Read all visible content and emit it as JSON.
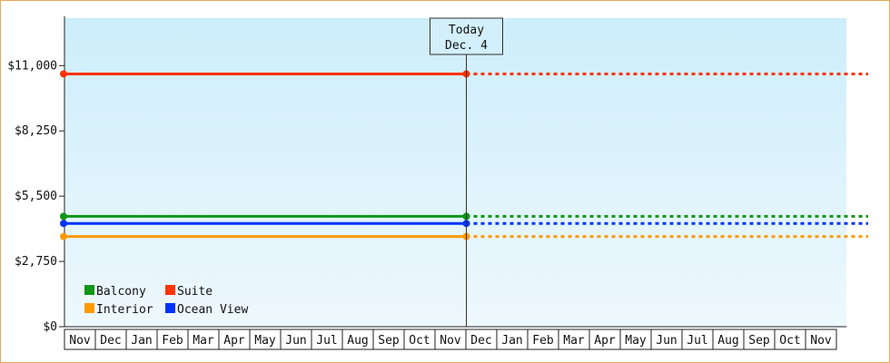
{
  "chart_data": {
    "type": "line",
    "today_marker": {
      "line1": "Today",
      "line2": "Dec. 4"
    },
    "y_ticks": [
      "$0",
      "$2,750",
      "$5,500",
      "$8,250",
      "$11,000"
    ],
    "ylim": [
      0,
      13000
    ],
    "tick_values": [
      0,
      2750,
      5500,
      8250,
      11000
    ],
    "x_categories": [
      "Nov",
      "Dec",
      "Jan",
      "Feb",
      "Mar",
      "Apr",
      "May",
      "Jun",
      "Jul",
      "Aug",
      "Sep",
      "Oct",
      "Nov",
      "Dec",
      "Jan",
      "Feb",
      "Mar",
      "Apr",
      "May",
      "Jun",
      "Jul",
      "Aug",
      "Sep",
      "Oct",
      "Nov"
    ],
    "today_index": 13,
    "grid": false,
    "legend_position": "bottom-left",
    "series": [
      {
        "name": "Balcony",
        "color": "#109618",
        "value": 4650
      },
      {
        "name": "Suite",
        "color": "#ff3300",
        "value": 10650
      },
      {
        "name": "Interior",
        "color": "#ff9900",
        "value": 3800
      },
      {
        "name": "Ocean View",
        "color": "#0033ff",
        "value": 4350
      }
    ],
    "colors": {
      "background_top": "#cdeefb",
      "background_bottom": "#eef8fd",
      "frame_border": "#e6a75a"
    }
  }
}
